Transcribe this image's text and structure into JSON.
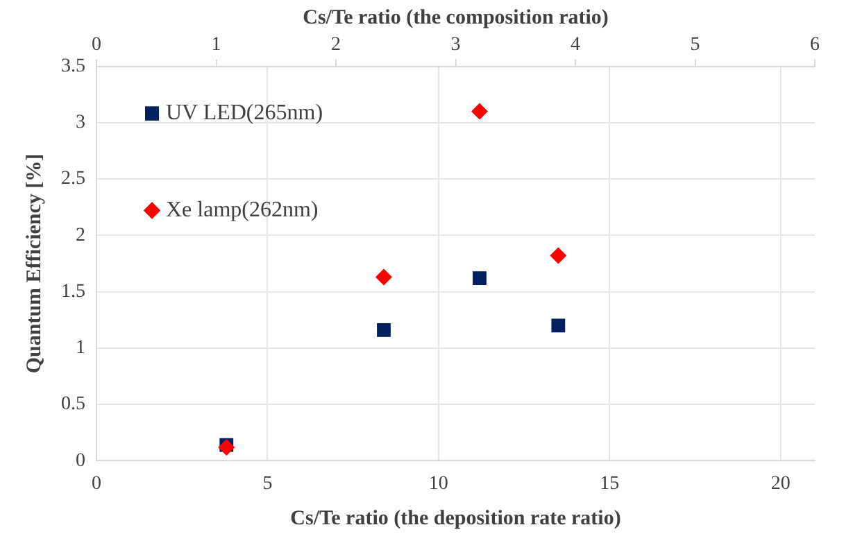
{
  "chart_data": {
    "type": "scatter",
    "xlabel": "Cs/Te ratio (the deposition rate ratio)",
    "x2label": "Cs/Te ratio (the composition ratio)",
    "ylabel": "Quantum Efficiency [%]",
    "xlim": [
      0,
      21
    ],
    "xticks": [
      0,
      5,
      10,
      15,
      20
    ],
    "x2lim": [
      0,
      6
    ],
    "x2ticks": [
      0,
      1,
      2,
      3,
      4,
      5,
      6
    ],
    "ylim": [
      0,
      3.5
    ],
    "yticks": [
      0,
      0.5,
      1,
      1.5,
      2,
      2.5,
      3,
      3.5
    ],
    "grid": true,
    "legend": "top left",
    "series": [
      {
        "name": "UV LED(265nm)",
        "color": "#002060",
        "marker": "square",
        "x": [
          3.8,
          8.4,
          11.2,
          13.5
        ],
        "values": [
          0.14,
          1.16,
          1.62,
          1.2
        ]
      },
      {
        "name": "Xe lamp(262nm)",
        "color": "#ff0000",
        "marker": "diamond",
        "x": [
          3.8,
          8.4,
          11.2,
          13.5
        ],
        "values": [
          0.12,
          1.63,
          3.1,
          1.82
        ]
      }
    ]
  }
}
